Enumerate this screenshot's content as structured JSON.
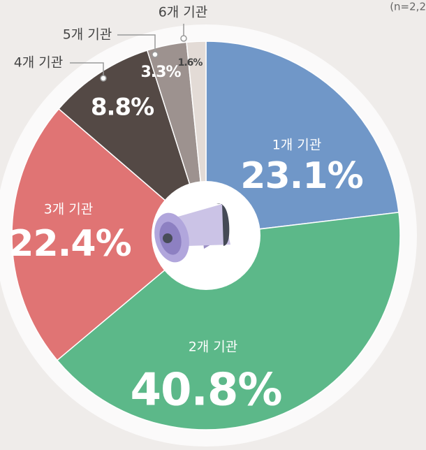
{
  "chart_data": {
    "type": "pie",
    "subtitle": "(n=2,2",
    "categories": [
      "1개 기관",
      "2개 기관",
      "3개 기관",
      "4개 기관",
      "5개 기관",
      "6개 기관"
    ],
    "values": [
      23.1,
      40.8,
      22.4,
      8.8,
      3.3,
      1.6
    ],
    "value_labels": [
      "23.1%",
      "40.8%",
      "22.4%",
      "8.8%",
      "3.3%",
      "1.6%"
    ],
    "colors": [
      "#7097c8",
      "#5cb889",
      "#e07474",
      "#544945",
      "#9d928f",
      "#e3dbd6"
    ]
  }
}
